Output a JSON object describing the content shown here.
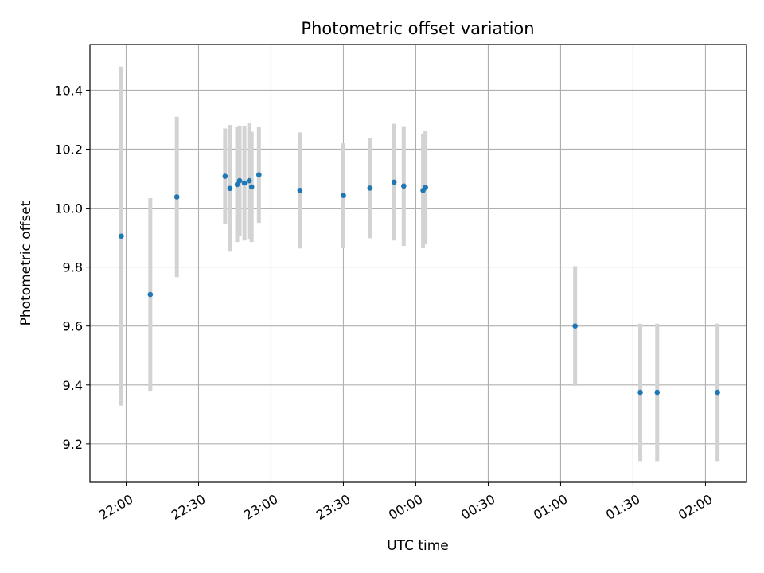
{
  "chart_data": {
    "type": "scatter",
    "title": "Photometric offset variation",
    "xlabel": "UTC time",
    "ylabel": "Photometric offset",
    "x_unit": "UTC time of night (HH:MM, hours past midnight continue into next day)",
    "xlim": [
      "21:45",
      "02:17"
    ],
    "ylim": [
      9.07,
      10.555
    ],
    "grid": true,
    "legend": "none",
    "x_ticks": [
      "22:00",
      "22:30",
      "23:00",
      "23:30",
      "00:00",
      "00:30",
      "01:00",
      "01:30",
      "02:00"
    ],
    "y_ticks": [
      "9.2",
      "9.4",
      "9.6",
      "9.8",
      "10.0",
      "10.2",
      "10.4"
    ],
    "colors": {
      "marker": "#1f77b4",
      "errorbar": "#d3d3d3",
      "grid": "#b0b0b0"
    },
    "points": [
      {
        "x": "21:58",
        "y": 9.905,
        "err": 0.575
      },
      {
        "x": "22:10",
        "y": 9.707,
        "err": 0.327
      },
      {
        "x": "22:21",
        "y": 10.038,
        "err": 0.272
      },
      {
        "x": "22:41",
        "y": 10.108,
        "err": 0.162
      },
      {
        "x": "22:43",
        "y": 10.067,
        "err": 0.215
      },
      {
        "x": "22:46",
        "y": 10.08,
        "err": 0.195
      },
      {
        "x": "22:47",
        "y": 10.093,
        "err": 0.187
      },
      {
        "x": "22:49",
        "y": 10.085,
        "err": 0.195
      },
      {
        "x": "22:51",
        "y": 10.093,
        "err": 0.197
      },
      {
        "x": "22:52",
        "y": 10.072,
        "err": 0.187
      },
      {
        "x": "22:55",
        "y": 10.113,
        "err": 0.163
      },
      {
        "x": "23:12",
        "y": 10.06,
        "err": 0.197
      },
      {
        "x": "23:30",
        "y": 10.043,
        "err": 0.177
      },
      {
        "x": "23:41",
        "y": 10.068,
        "err": 0.17
      },
      {
        "x": "23:51",
        "y": 10.088,
        "err": 0.198
      },
      {
        "x": "23:55",
        "y": 10.075,
        "err": 0.203
      },
      {
        "x": "00:03",
        "y": 10.06,
        "err": 0.193
      },
      {
        "x": "00:04",
        "y": 10.07,
        "err": 0.193
      },
      {
        "x": "01:06",
        "y": 9.6,
        "err": 0.203
      },
      {
        "x": "01:33",
        "y": 9.375,
        "err": 0.233
      },
      {
        "x": "01:40",
        "y": 9.375,
        "err": 0.233
      },
      {
        "x": "02:05",
        "y": 9.375,
        "err": 0.233
      }
    ]
  }
}
